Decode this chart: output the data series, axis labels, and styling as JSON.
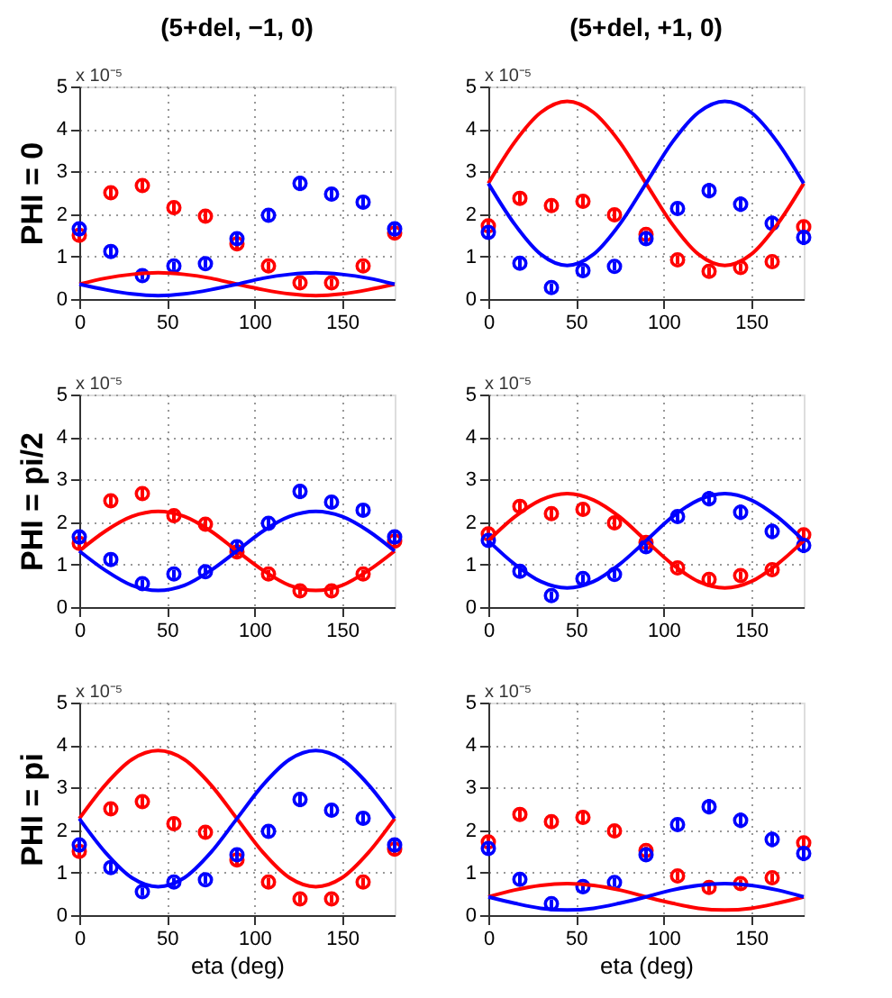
{
  "chart_data": [
    {
      "type": "scatter",
      "title": "(5+del, −1, 0)",
      "ylabel": "PHI = 0",
      "annotations": [
        "x 10⁻⁵"
      ],
      "xlim": [
        0,
        180
      ],
      "xticks": [
        0,
        50,
        100,
        150
      ],
      "ylim": [
        0,
        5
      ],
      "yticks": [
        0,
        1,
        2,
        3,
        4,
        5
      ],
      "grid": true,
      "marker": "circle",
      "series": [
        {
          "color": "#ff0000",
          "x": [
            0,
            18,
            36,
            54,
            72,
            90,
            108,
            126,
            144,
            162,
            180
          ],
          "values": [
            1.5,
            2.5,
            2.67,
            2.15,
            1.95,
            1.3,
            0.78,
            0.38,
            0.38,
            0.78,
            1.55
          ],
          "errors": [
            0.15,
            0.15,
            0.15,
            0.15,
            0.15,
            0.15,
            0.1,
            0.1,
            0.1,
            0.1,
            0.15
          ]
        },
        {
          "color": "#0000ff",
          "x": [
            0,
            18,
            36,
            54,
            72,
            90,
            108,
            126,
            144,
            162,
            180
          ],
          "values": [
            1.65,
            1.12,
            0.55,
            0.78,
            0.83,
            1.42,
            1.97,
            2.72,
            2.47,
            2.28,
            1.65
          ],
          "errors": [
            0.15,
            0.15,
            0.1,
            0.1,
            0.1,
            0.15,
            0.15,
            0.18,
            0.15,
            0.15,
            0.15
          ]
        },
        {
          "type": "line",
          "marker": "none",
          "color": "#ff0000",
          "x": [
            0,
            15,
            30,
            45,
            60,
            75,
            90,
            105,
            120,
            135,
            150,
            165,
            180
          ],
          "values": [
            0.35,
            0.49,
            0.58,
            0.62,
            0.58,
            0.49,
            0.35,
            0.22,
            0.12,
            0.08,
            0.12,
            0.22,
            0.35
          ]
        },
        {
          "type": "line",
          "marker": "none",
          "color": "#0000ff",
          "x": [
            0,
            15,
            30,
            45,
            60,
            75,
            90,
            105,
            120,
            135,
            150,
            165,
            180
          ],
          "values": [
            0.35,
            0.22,
            0.12,
            0.08,
            0.12,
            0.22,
            0.35,
            0.49,
            0.58,
            0.62,
            0.58,
            0.49,
            0.35
          ]
        }
      ]
    },
    {
      "type": "scatter",
      "title": "(5+del, +1, 0)",
      "annotations": [
        "x 10⁻⁵"
      ],
      "xlim": [
        0,
        180
      ],
      "xticks": [
        0,
        50,
        100,
        150
      ],
      "ylim": [
        0,
        5
      ],
      "yticks": [
        0,
        1,
        2,
        3,
        4,
        5
      ],
      "grid": true,
      "marker": "circle",
      "series": [
        {
          "color": "#ff0000",
          "x": [
            0,
            18,
            36,
            54,
            72,
            90,
            108,
            126,
            144,
            162,
            180
          ],
          "values": [
            1.72,
            2.37,
            2.2,
            2.3,
            1.98,
            1.52,
            0.92,
            0.65,
            0.74,
            0.88,
            1.7
          ],
          "errors": [
            0.15,
            0.15,
            0.15,
            0.15,
            0.15,
            0.1,
            0.1,
            0.1,
            0.1,
            0.1,
            0.15
          ]
        },
        {
          "color": "#0000ff",
          "x": [
            0,
            18,
            36,
            54,
            72,
            90,
            108,
            126,
            144,
            162,
            180
          ],
          "values": [
            1.57,
            0.84,
            0.27,
            0.67,
            0.77,
            1.42,
            2.13,
            2.55,
            2.23,
            1.78,
            1.45
          ],
          "errors": [
            0.15,
            0.15,
            0.1,
            0.1,
            0.1,
            0.15,
            0.15,
            0.18,
            0.18,
            0.18,
            0.18
          ]
        },
        {
          "type": "line",
          "marker": "none",
          "color": "#ff0000",
          "x": [
            0,
            15,
            30,
            45,
            60,
            75,
            90,
            105,
            120,
            135,
            150,
            165,
            180
          ],
          "values": [
            2.72,
            3.69,
            4.39,
            4.65,
            4.39,
            3.69,
            2.72,
            1.76,
            1.05,
            0.79,
            1.05,
            1.76,
            2.72
          ]
        },
        {
          "type": "line",
          "marker": "none",
          "color": "#0000ff",
          "x": [
            0,
            15,
            30,
            45,
            60,
            75,
            90,
            105,
            120,
            135,
            150,
            165,
            180
          ],
          "values": [
            2.72,
            1.76,
            1.05,
            0.79,
            1.05,
            1.76,
            2.72,
            3.69,
            4.39,
            4.65,
            4.39,
            3.69,
            2.72
          ]
        }
      ]
    },
    {
      "type": "scatter",
      "ylabel": "PHI = pi/2",
      "annotations": [
        "x 10⁻⁵"
      ],
      "xlim": [
        0,
        180
      ],
      "xticks": [
        0,
        50,
        100,
        150
      ],
      "ylim": [
        0,
        5
      ],
      "yticks": [
        0,
        1,
        2,
        3,
        4,
        5
      ],
      "grid": true,
      "marker": "circle",
      "series": [
        {
          "color": "#ff0000",
          "x": [
            0,
            18,
            36,
            54,
            72,
            90,
            108,
            126,
            144,
            162,
            180
          ],
          "values": [
            1.5,
            2.5,
            2.67,
            2.15,
            1.95,
            1.3,
            0.78,
            0.38,
            0.38,
            0.78,
            1.55
          ],
          "errors": [
            0.15,
            0.15,
            0.15,
            0.15,
            0.15,
            0.15,
            0.1,
            0.1,
            0.1,
            0.1,
            0.15
          ]
        },
        {
          "color": "#0000ff",
          "x": [
            0,
            18,
            36,
            54,
            72,
            90,
            108,
            126,
            144,
            162,
            180
          ],
          "values": [
            1.65,
            1.12,
            0.55,
            0.78,
            0.83,
            1.42,
            1.97,
            2.72,
            2.47,
            2.28,
            1.65
          ],
          "errors": [
            0.15,
            0.15,
            0.1,
            0.1,
            0.1,
            0.15,
            0.15,
            0.18,
            0.15,
            0.15,
            0.15
          ]
        },
        {
          "type": "line",
          "marker": "none",
          "color": "#ff0000",
          "x": [
            0,
            15,
            30,
            45,
            60,
            75,
            90,
            105,
            120,
            135,
            150,
            165,
            180
          ],
          "values": [
            1.32,
            1.79,
            2.13,
            2.25,
            2.13,
            1.79,
            1.32,
            0.86,
            0.51,
            0.39,
            0.51,
            0.86,
            1.32
          ]
        },
        {
          "type": "line",
          "marker": "none",
          "color": "#0000ff",
          "x": [
            0,
            15,
            30,
            45,
            60,
            75,
            90,
            105,
            120,
            135,
            150,
            165,
            180
          ],
          "values": [
            1.32,
            0.86,
            0.51,
            0.39,
            0.51,
            0.86,
            1.32,
            1.79,
            2.13,
            2.25,
            2.13,
            1.79,
            1.32
          ]
        }
      ]
    },
    {
      "type": "scatter",
      "annotations": [
        "x 10⁻⁵"
      ],
      "xlim": [
        0,
        180
      ],
      "xticks": [
        0,
        50,
        100,
        150
      ],
      "ylim": [
        0,
        5
      ],
      "yticks": [
        0,
        1,
        2,
        3,
        4,
        5
      ],
      "grid": true,
      "marker": "circle",
      "series": [
        {
          "color": "#ff0000",
          "x": [
            0,
            18,
            36,
            54,
            72,
            90,
            108,
            126,
            144,
            162,
            180
          ],
          "values": [
            1.72,
            2.37,
            2.2,
            2.3,
            1.98,
            1.52,
            0.92,
            0.65,
            0.74,
            0.88,
            1.7
          ],
          "errors": [
            0.15,
            0.15,
            0.15,
            0.15,
            0.15,
            0.1,
            0.1,
            0.1,
            0.1,
            0.1,
            0.15
          ]
        },
        {
          "color": "#0000ff",
          "x": [
            0,
            18,
            36,
            54,
            72,
            90,
            108,
            126,
            144,
            162,
            180
          ],
          "values": [
            1.57,
            0.84,
            0.27,
            0.67,
            0.77,
            1.42,
            2.13,
            2.55,
            2.23,
            1.78,
            1.45
          ],
          "errors": [
            0.15,
            0.15,
            0.1,
            0.1,
            0.1,
            0.15,
            0.15,
            0.18,
            0.18,
            0.18,
            0.18
          ]
        },
        {
          "type": "line",
          "marker": "none",
          "color": "#ff0000",
          "x": [
            0,
            15,
            30,
            45,
            60,
            75,
            90,
            105,
            120,
            135,
            150,
            165,
            180
          ],
          "values": [
            1.56,
            2.12,
            2.52,
            2.67,
            2.52,
            2.12,
            1.56,
            1.01,
            0.6,
            0.45,
            0.6,
            1.01,
            1.56
          ]
        },
        {
          "type": "line",
          "marker": "none",
          "color": "#0000ff",
          "x": [
            0,
            15,
            30,
            45,
            60,
            75,
            90,
            105,
            120,
            135,
            150,
            165,
            180
          ],
          "values": [
            1.56,
            1.01,
            0.6,
            0.45,
            0.6,
            1.01,
            1.56,
            2.12,
            2.52,
            2.67,
            2.52,
            2.12,
            1.56
          ]
        }
      ]
    },
    {
      "type": "scatter",
      "ylabel": "PHI = pi",
      "xlabel": "eta (deg)",
      "annotations": [
        "x 10⁻⁵"
      ],
      "xlim": [
        0,
        180
      ],
      "xticks": [
        0,
        50,
        100,
        150
      ],
      "ylim": [
        0,
        5
      ],
      "yticks": [
        0,
        1,
        2,
        3,
        4,
        5
      ],
      "grid": true,
      "marker": "circle",
      "series": [
        {
          "color": "#ff0000",
          "x": [
            0,
            18,
            36,
            54,
            72,
            90,
            108,
            126,
            144,
            162,
            180
          ],
          "values": [
            1.5,
            2.5,
            2.67,
            2.15,
            1.95,
            1.3,
            0.78,
            0.38,
            0.38,
            0.78,
            1.55
          ],
          "errors": [
            0.15,
            0.15,
            0.15,
            0.15,
            0.15,
            0.15,
            0.1,
            0.1,
            0.1,
            0.1,
            0.15
          ]
        },
        {
          "color": "#0000ff",
          "x": [
            0,
            18,
            36,
            54,
            72,
            90,
            108,
            126,
            144,
            162,
            180
          ],
          "values": [
            1.65,
            1.12,
            0.55,
            0.78,
            0.83,
            1.42,
            1.97,
            2.72,
            2.47,
            2.28,
            1.65
          ],
          "errors": [
            0.15,
            0.15,
            0.1,
            0.1,
            0.1,
            0.15,
            0.15,
            0.18,
            0.15,
            0.15,
            0.15
          ]
        },
        {
          "type": "line",
          "marker": "none",
          "color": "#ff0000",
          "x": [
            0,
            15,
            30,
            45,
            60,
            75,
            90,
            105,
            120,
            135,
            150,
            165,
            180
          ],
          "values": [
            2.27,
            3.07,
            3.66,
            3.87,
            3.66,
            3.07,
            2.27,
            1.47,
            0.88,
            0.67,
            0.88,
            1.47,
            2.27
          ]
        },
        {
          "type": "line",
          "marker": "none",
          "color": "#0000ff",
          "x": [
            0,
            15,
            30,
            45,
            60,
            75,
            90,
            105,
            120,
            135,
            150,
            165,
            180
          ],
          "values": [
            2.27,
            1.47,
            0.88,
            0.67,
            0.88,
            1.47,
            2.27,
            3.07,
            3.66,
            3.87,
            3.66,
            3.07,
            2.27
          ]
        }
      ]
    },
    {
      "type": "scatter",
      "xlabel": "eta (deg)",
      "annotations": [
        "x 10⁻⁵"
      ],
      "xlim": [
        0,
        180
      ],
      "xticks": [
        0,
        50,
        100,
        150
      ],
      "ylim": [
        0,
        5
      ],
      "yticks": [
        0,
        1,
        2,
        3,
        4,
        5
      ],
      "grid": true,
      "marker": "circle",
      "series": [
        {
          "color": "#ff0000",
          "x": [
            0,
            18,
            36,
            54,
            72,
            90,
            108,
            126,
            144,
            162,
            180
          ],
          "values": [
            1.72,
            2.37,
            2.2,
            2.3,
            1.98,
            1.52,
            0.92,
            0.65,
            0.74,
            0.88,
            1.7
          ],
          "errors": [
            0.15,
            0.15,
            0.15,
            0.15,
            0.15,
            0.1,
            0.1,
            0.1,
            0.1,
            0.1,
            0.15
          ]
        },
        {
          "color": "#0000ff",
          "x": [
            0,
            18,
            36,
            54,
            72,
            90,
            108,
            126,
            144,
            162,
            180
          ],
          "values": [
            1.57,
            0.84,
            0.27,
            0.67,
            0.77,
            1.42,
            2.13,
            2.55,
            2.23,
            1.78,
            1.45
          ],
          "errors": [
            0.15,
            0.15,
            0.1,
            0.1,
            0.1,
            0.15,
            0.15,
            0.18,
            0.18,
            0.18,
            0.18
          ]
        },
        {
          "type": "line",
          "marker": "none",
          "color": "#ff0000",
          "x": [
            0,
            15,
            30,
            45,
            60,
            75,
            90,
            105,
            120,
            135,
            150,
            165,
            180
          ],
          "values": [
            0.43,
            0.59,
            0.7,
            0.74,
            0.7,
            0.59,
            0.43,
            0.28,
            0.16,
            0.12,
            0.16,
            0.28,
            0.43
          ]
        },
        {
          "type": "line",
          "marker": "none",
          "color": "#0000ff",
          "x": [
            0,
            15,
            30,
            45,
            60,
            75,
            90,
            105,
            120,
            135,
            150,
            165,
            180
          ],
          "values": [
            0.43,
            0.28,
            0.16,
            0.12,
            0.16,
            0.28,
            0.43,
            0.59,
            0.7,
            0.74,
            0.7,
            0.59,
            0.43
          ]
        }
      ]
    }
  ]
}
